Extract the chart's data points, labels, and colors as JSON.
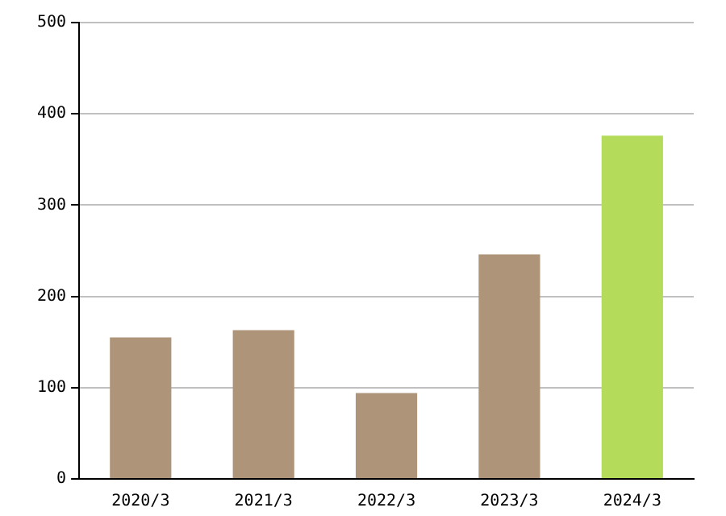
{
  "chart_data": {
    "type": "bar",
    "categories": [
      "2020/3",
      "2021/3",
      "2022/3",
      "2023/3",
      "2024/3"
    ],
    "values": [
      155,
      163,
      94,
      246,
      376
    ],
    "colors": [
      "#ae9479",
      "#ae9479",
      "#ae9479",
      "#ae9479",
      "#b5db5a"
    ],
    "ylim": [
      0,
      500
    ],
    "yticks": [
      0,
      100,
      200,
      300,
      400,
      500
    ],
    "grid": "y"
  }
}
